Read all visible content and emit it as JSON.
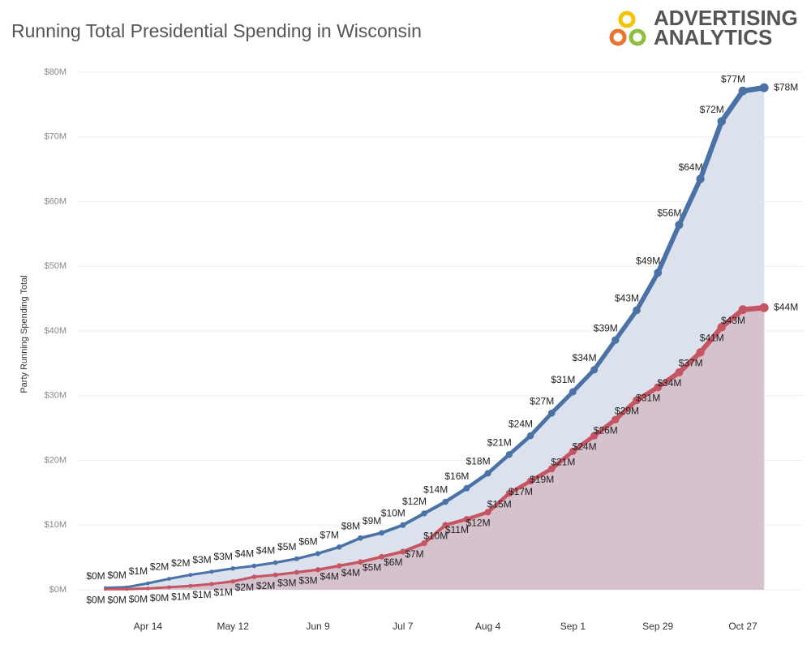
{
  "chart_data": {
    "type": "line",
    "title": "Running Total Presidential Spending in Wisconsin",
    "logo": [
      "ADVERTISING",
      "ANALYTICS"
    ],
    "y_label": "Party Running Spending Total",
    "categories": [
      null,
      null,
      "Apr 14",
      null,
      null,
      null,
      "May 12",
      null,
      null,
      null,
      "Jun 9",
      null,
      null,
      null,
      "Jul 7",
      null,
      null,
      null,
      "Aug 4",
      null,
      null,
      null,
      "Sep 1",
      null,
      null,
      null,
      "Sep 29",
      null,
      null,
      null,
      "Oct 27",
      null
    ],
    "ylim": [
      0,
      80
    ],
    "yticks": [
      {
        "value": 0,
        "label": "$0M"
      },
      {
        "value": 10,
        "label": "$10M"
      },
      {
        "value": 20,
        "label": "$20M"
      },
      {
        "value": 30,
        "label": "$30M"
      },
      {
        "value": 40,
        "label": "$40M"
      },
      {
        "value": 50,
        "label": "$50M"
      },
      {
        "value": 60,
        "label": "$60M"
      },
      {
        "value": 70,
        "label": "$70M"
      },
      {
        "value": 80,
        "label": "$80M"
      }
    ],
    "grid": true,
    "series": [
      {
        "color": "#4a72a6",
        "area_color": "#dbe2ed",
        "values": [
          0.3,
          0.4,
          1.0,
          1.7,
          2.3,
          2.8,
          3.3,
          3.7,
          4.2,
          4.8,
          5.6,
          6.6,
          8.0,
          8.8,
          10.0,
          11.8,
          13.6,
          15.7,
          18.0,
          20.9,
          23.8,
          27.3,
          30.6,
          34.0,
          38.6,
          43.2,
          49.0,
          56.4,
          63.5,
          72.4,
          77.1,
          77.6
        ],
        "value_labels": [
          "$0M",
          "$0M",
          "$1M",
          "$2M",
          "$2M",
          "$3M",
          "$3M",
          "$4M",
          "$4M",
          "$5M",
          "$6M",
          "$7M",
          "$8M",
          "$9M",
          "$10M",
          "$12M",
          "$14M",
          "$16M",
          "$18M",
          "$21M",
          "$24M",
          "$27M",
          "$31M",
          "$34M",
          "$39M",
          "$43M",
          "$49M",
          "$56M",
          "$64M",
          "$72M",
          "$77M",
          "$78M"
        ]
      },
      {
        "color": "#c65563",
        "area_color": "#d5c2cd",
        "values": [
          0.1,
          0.1,
          0.2,
          0.4,
          0.6,
          0.9,
          1.3,
          2.0,
          2.3,
          2.7,
          3.1,
          3.7,
          4.3,
          5.1,
          5.9,
          7.2,
          10.0,
          10.9,
          12.0,
          14.9,
          16.8,
          18.7,
          21.4,
          23.8,
          26.3,
          29.3,
          31.3,
          33.6,
          36.7,
          40.6,
          43.3,
          43.6
        ],
        "value_labels": [
          "$0M",
          "$0M",
          "$0M",
          "$0M",
          "$1M",
          "$1M",
          "$1M",
          "$2M",
          "$2M",
          "$3M",
          "$3M",
          "$4M",
          "$4M",
          "$5M",
          "$6M",
          "$7M",
          "$10M",
          "$11M",
          "$12M",
          "$15M",
          "$17M",
          "$19M",
          "$21M",
          "$24M",
          "$26M",
          "$29M",
          "$31M",
          "$34M",
          "$37M",
          "$41M",
          "$43M",
          "$44M"
        ]
      }
    ]
  }
}
